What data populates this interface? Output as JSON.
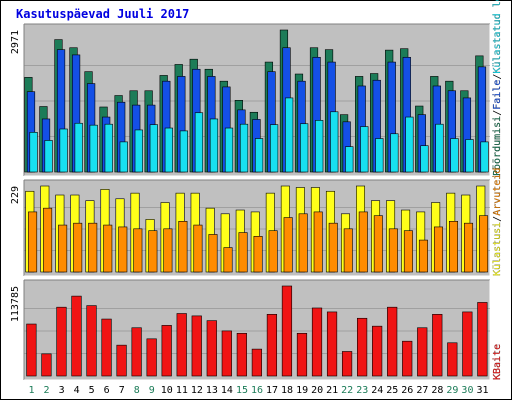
{
  "chart_data": {
    "type": "bar",
    "title": "Kasutuspäevad Juuli 2017",
    "categories": [
      "1",
      "2",
      "3",
      "4",
      "5",
      "6",
      "7",
      "8",
      "9",
      "10",
      "11",
      "12",
      "13",
      "14",
      "15",
      "16",
      "17",
      "18",
      "19",
      "20",
      "21",
      "22",
      "23",
      "24",
      "25",
      "26",
      "27",
      "28",
      "29",
      "30",
      "31"
    ],
    "weekend_days": [
      "1",
      "2",
      "8",
      "9",
      "15",
      "16",
      "22",
      "23",
      "29",
      "30"
    ],
    "panels": [
      {
        "id": "visits",
        "scale_label": "2971",
        "scale_max": 2971,
        "legend": [
          "Pöördumisi",
          "Faile",
          "Külastatud lehti"
        ],
        "series": [
          {
            "name": "Pöördumisi",
            "color": "#1c7c58",
            "values": [
              1980,
              1370,
              2770,
              2600,
              2100,
              1360,
              1600,
              1700,
              1700,
              2020,
              2250,
              2360,
              2150,
              1900,
              1500,
              1250,
              2300,
              2971,
              2050,
              2600,
              2560,
              1200,
              2000,
              2060,
              2550,
              2580,
              1380,
              2000,
              1900,
              1700,
              2430
            ]
          },
          {
            "name": "Faile",
            "color": "#1450e6",
            "values": [
              1680,
              1110,
              2560,
              2450,
              1850,
              1150,
              1460,
              1400,
              1400,
              1900,
              2000,
              2150,
              2000,
              1780,
              1300,
              1100,
              2100,
              2600,
              1900,
              2400,
              2300,
              1050,
              1800,
              1920,
              2300,
              2400,
              1200,
              1800,
              1700,
              1550,
              2200
            ]
          },
          {
            "name": "Külastatud lehti",
            "color": "#17e0f0",
            "values": [
              830,
              660,
              900,
              1020,
              980,
              1000,
              630,
              880,
              990,
              920,
              860,
              1240,
              1110,
              920,
              1000,
              700,
              990,
              1550,
              1010,
              1080,
              1260,
              530,
              950,
              700,
              800,
              1150,
              550,
              1000,
              700,
              680,
              630
            ]
          }
        ]
      },
      {
        "id": "visitors",
        "scale_label": "229",
        "scale_max": 229,
        "legend": [
          "Külastusi",
          "Arvuteid"
        ],
        "series": [
          {
            "name": "Külastusi",
            "color": "#ffff1a",
            "values": [
              215,
              229,
              205,
              205,
              190,
              220,
              195,
              210,
              140,
              185,
              210,
              210,
              170,
              155,
              165,
              160,
              210,
              229,
              225,
              225,
              215,
              155,
              229,
              190,
              190,
              165,
              160,
              185,
              210,
              205,
              229
            ]
          },
          {
            "name": "Arvuteid",
            "color": "#ff8c00",
            "values": [
              160,
              170,
              125,
              130,
              130,
              125,
              120,
              115,
              110,
              115,
              135,
              125,
              100,
              65,
              105,
              95,
              110,
              145,
              155,
              160,
              130,
              115,
              160,
              150,
              115,
              110,
              85,
              120,
              135,
              130,
              150
            ]
          }
        ]
      },
      {
        "id": "bytes",
        "scale_label": "113785",
        "scale_max": 113785,
        "legend": [
          "KBaite"
        ],
        "series": [
          {
            "name": "KBaite",
            "color": "#f01414",
            "values": [
              65700,
              28000,
              87000,
              101000,
              89000,
              72000,
              39000,
              61000,
              47000,
              64000,
              79000,
              76000,
              70000,
              57000,
              54000,
              34000,
              78000,
              113785,
              54000,
              86000,
              81000,
              31000,
              73000,
              63000,
              87000,
              44000,
              61000,
              78000,
              42000,
              81000,
              93000
            ]
          }
        ]
      }
    ]
  }
}
